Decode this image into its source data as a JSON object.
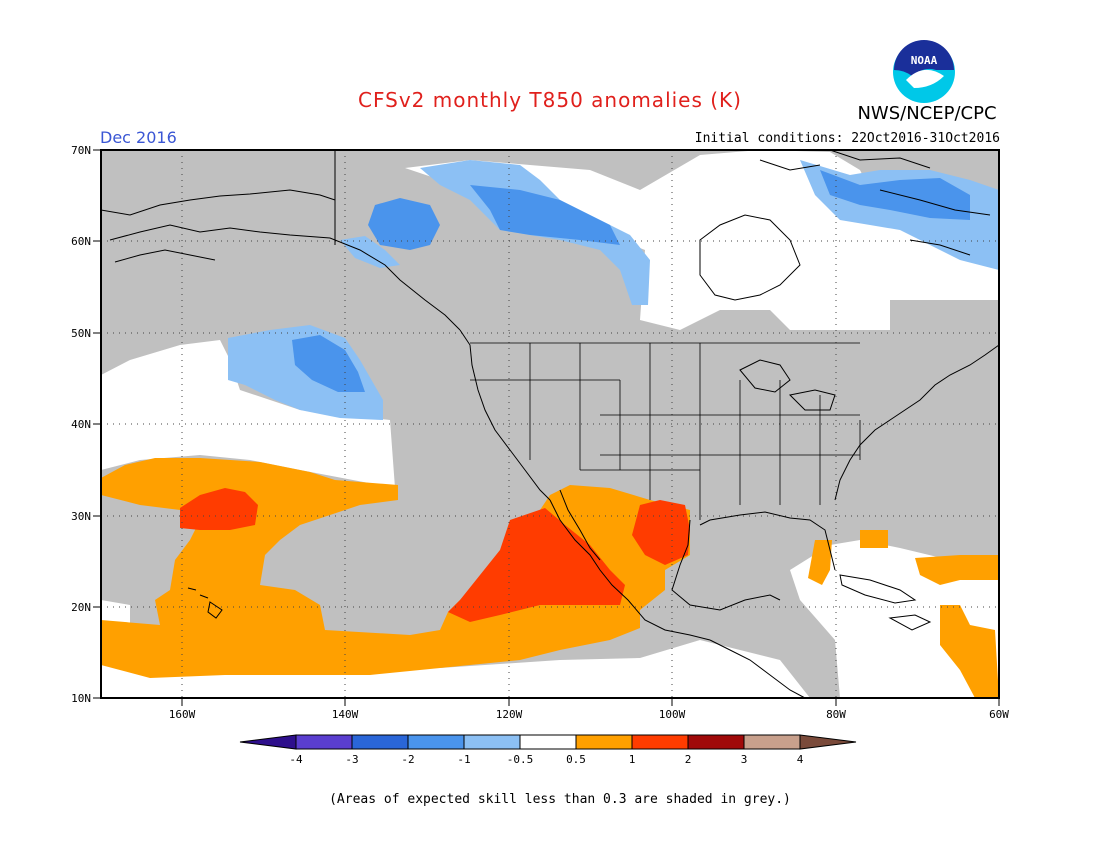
{
  "header": {
    "title": "CFSv2 monthly T850 anomalies (K)",
    "agency": "NWS/NCEP/CPC",
    "logo_text": "NOAA",
    "month": "Dec 2016",
    "initial_conditions": "Initial conditions: 22Oct2016-31Oct2016"
  },
  "map": {
    "lat_labels": [
      "70N",
      "60N",
      "50N",
      "40N",
      "30N",
      "20N",
      "10N"
    ],
    "lon_labels": [
      "160W",
      "140W",
      "120W",
      "100W",
      "80W",
      "60W"
    ],
    "extent": {
      "lon_min": -170,
      "lon_max": -60,
      "lat_min": 10,
      "lat_max": 70
    }
  },
  "legend": {
    "labels": [
      "-4",
      "-3",
      "-2",
      "-1",
      "-0.5",
      "0.5",
      "1",
      "2",
      "3",
      "4"
    ],
    "colors": [
      "#2e0f8c",
      "#5a3ecf",
      "#2a66d8",
      "#4a94ec",
      "#8cc0f4",
      "#ffffff",
      "#ffa000",
      "#ff3c00",
      "#a00a0a",
      "#c8a08c",
      "#7a4a3a"
    ]
  },
  "colors": {
    "grey": "#c0c0c0",
    "title": "#e0201c",
    "month": "#3a56d4"
  },
  "footnote": "(Areas of expected skill less than 0.3 are shaded in grey.)"
}
